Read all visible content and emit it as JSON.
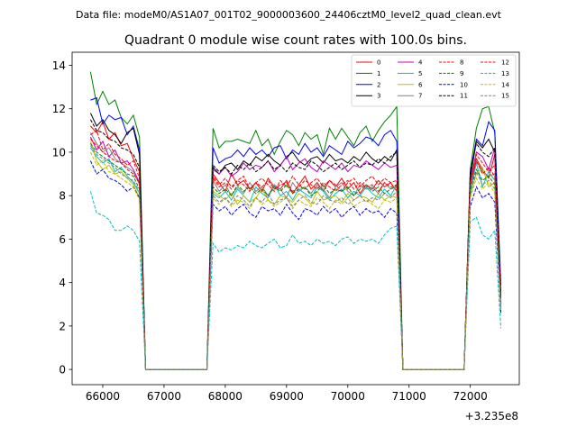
{
  "suptitle": "Data file: modeM0/AS1A07_001T02_9000003600_24406cztM0_level2_quad_clean.evt",
  "chart_data": {
    "type": "line",
    "title": "Quadrant 0 module wise count rates with 100.0s bins.",
    "xlabel": "",
    "ylabel": "",
    "x_offset_label": "+3.235e8",
    "xlim": [
      65500,
      72800
    ],
    "ylim": [
      -0.7,
      14.6
    ],
    "xticks": [
      66000,
      67000,
      68000,
      69000,
      70000,
      71000,
      72000
    ],
    "xtick_labels": [
      "66000",
      "67000",
      "68000",
      "69000",
      "70000",
      "71000",
      "72000"
    ],
    "yticks": [
      0,
      2,
      4,
      6,
      8,
      10,
      12,
      14
    ],
    "ytick_labels": [
      "0",
      "2",
      "4",
      "6",
      "8",
      "10",
      "12",
      "14"
    ],
    "grid": false,
    "legend_location": "upper right",
    "legend_columns": 4,
    "segments": [
      {
        "x_start": 65800,
        "x_end": 66600,
        "n": 9
      },
      {
        "x_start": 66700,
        "x_end": 67700,
        "n": 11
      },
      {
        "x_start": 67800,
        "x_end": 70800,
        "n": 31
      },
      {
        "x_start": 70900,
        "x_end": 71900,
        "n": 11
      },
      {
        "x_start": 72000,
        "x_end": 72500,
        "n": 6
      }
    ],
    "series": [
      {
        "name": "0",
        "color": "#ff0000",
        "linestyle": "solid",
        "values": [
          11.2,
          10.9,
          11.4,
          10.6,
          10.9,
          10.3,
          10.4,
          9.7,
          9.1,
          0,
          0,
          0,
          0,
          0,
          0,
          0,
          0,
          0,
          0,
          0,
          9.0,
          8.6,
          8.2,
          9.0,
          8.5,
          8.7,
          8.3,
          8.6,
          8.2,
          8.8,
          8.4,
          8.3,
          8.7,
          8.1,
          8.5,
          8.9,
          8.3,
          8.6,
          8.2,
          8.7,
          8.4,
          8.8,
          8.3,
          8.6,
          8.1,
          8.5,
          8.3,
          8.7,
          8.4,
          8.6,
          8.2,
          0,
          0,
          0,
          0,
          0,
          0,
          0,
          0,
          0,
          0,
          0,
          8.6,
          9.7,
          9.2,
          8.8,
          9.9,
          3.0
        ]
      },
      {
        "name": "1",
        "color": "#008000",
        "linestyle": "solid",
        "values": [
          13.7,
          12.2,
          12.8,
          12.2,
          12.4,
          11.6,
          11.3,
          11.7,
          10.7,
          0,
          0,
          0,
          0,
          0,
          0,
          0,
          0,
          0,
          0,
          0,
          11.1,
          10.2,
          10.5,
          10.5,
          10.6,
          10.5,
          10.4,
          11.0,
          10.3,
          10.6,
          9.9,
          10.5,
          11.0,
          10.8,
          10.3,
          10.9,
          10.6,
          10.8,
          9.9,
          11.1,
          10.6,
          11.1,
          10.7,
          10.3,
          10.9,
          11.2,
          10.5,
          11.0,
          11.4,
          11.7,
          12.1,
          0,
          0,
          0,
          0,
          0,
          0,
          0,
          0,
          0,
          0,
          0,
          9.2,
          11.1,
          12.0,
          12.1,
          10.9,
          3.9
        ]
      },
      {
        "name": "2",
        "color": "#0000ff",
        "linestyle": "solid",
        "values": [
          12.4,
          12.5,
          11.3,
          11.7,
          11.5,
          11.6,
          10.8,
          11.2,
          10.1,
          0,
          0,
          0,
          0,
          0,
          0,
          0,
          0,
          0,
          0,
          0,
          10.2,
          9.5,
          9.7,
          9.8,
          10.1,
          9.8,
          10.2,
          9.9,
          10.1,
          9.8,
          10.2,
          10.3,
          9.7,
          10.1,
          9.9,
          10.4,
          10.0,
          10.2,
          9.8,
          10.3,
          10.1,
          9.9,
          10.5,
          10.2,
          10.4,
          10.7,
          10.6,
          10.3,
          10.8,
          11.0,
          10.5,
          0,
          0,
          0,
          0,
          0,
          0,
          0,
          0,
          0,
          0,
          0,
          9.0,
          10.6,
          10.3,
          11.4,
          11.0,
          3.5
        ]
      },
      {
        "name": "3",
        "color": "#000000",
        "linestyle": "solid",
        "values": [
          11.8,
          11.2,
          11.5,
          11.0,
          10.8,
          10.4,
          10.9,
          11.1,
          9.9,
          0,
          0,
          0,
          0,
          0,
          0,
          0,
          0,
          0,
          0,
          0,
          9.3,
          9.0,
          9.4,
          9.5,
          9.2,
          9.6,
          9.4,
          9.8,
          9.6,
          9.9,
          9.6,
          9.4,
          9.8,
          10.0,
          9.6,
          9.4,
          9.7,
          9.8,
          9.5,
          9.9,
          9.6,
          9.7,
          9.5,
          9.8,
          9.6,
          10.0,
          9.7,
          9.5,
          9.8,
          9.6,
          10.1,
          0,
          0,
          0,
          0,
          0,
          0,
          0,
          0,
          0,
          0,
          0,
          8.8,
          10.5,
          10.2,
          10.6,
          10.0,
          2.8
        ]
      },
      {
        "name": "4",
        "color": "#bf00bf",
        "linestyle": "solid",
        "values": [
          10.7,
          10.1,
          10.5,
          9.8,
          10.1,
          9.5,
          9.6,
          9.2,
          8.6,
          0,
          0,
          0,
          0,
          0,
          0,
          0,
          0,
          0,
          0,
          0,
          9.2,
          9.0,
          9.3,
          8.9,
          9.1,
          9.5,
          9.2,
          9.4,
          9.3,
          9.6,
          9.1,
          9.4,
          9.8,
          9.2,
          9.5,
          9.7,
          9.3,
          9.1,
          9.6,
          9.4,
          9.2,
          9.5,
          9.1,
          9.4,
          9.3,
          9.6,
          9.4,
          9.2,
          9.5,
          9.3,
          9.4,
          0,
          0,
          0,
          0,
          0,
          0,
          0,
          0,
          0,
          0,
          0,
          8.6,
          10.0,
          9.8,
          9.2,
          10.2,
          3.0
        ]
      },
      {
        "name": "5",
        "color": "#00bfbf",
        "linestyle": "solid",
        "values": [
          10.2,
          9.8,
          9.5,
          9.7,
          9.1,
          9.3,
          8.9,
          8.6,
          8.1,
          0,
          0,
          0,
          0,
          0,
          0,
          0,
          0,
          0,
          0,
          0,
          8.1,
          7.9,
          8.2,
          7.8,
          8.3,
          8.0,
          7.7,
          8.4,
          8.1,
          7.9,
          8.5,
          8.0,
          8.2,
          7.8,
          8.3,
          8.1,
          7.9,
          8.4,
          8.2,
          7.8,
          8.1,
          8.3,
          7.9,
          8.2,
          8.0,
          8.4,
          8.1,
          7.9,
          8.3,
          8.0,
          8.5,
          0,
          0,
          0,
          0,
          0,
          0,
          0,
          0,
          0,
          0,
          0,
          8.2,
          9.5,
          8.4,
          9.1,
          8.7,
          2.9
        ]
      },
      {
        "name": "6",
        "color": "#bfbf00",
        "linestyle": "solid",
        "values": [
          10.5,
          9.6,
          9.2,
          9.4,
          9.0,
          9.1,
          8.8,
          8.5,
          7.9,
          0,
          0,
          0,
          0,
          0,
          0,
          0,
          0,
          0,
          0,
          0,
          8.2,
          8.0,
          7.8,
          8.1,
          7.6,
          8.0,
          7.7,
          7.9,
          8.3,
          7.8,
          7.6,
          8.0,
          7.9,
          7.7,
          8.1,
          7.9,
          7.6,
          8.2,
          7.8,
          7.9,
          8.0,
          7.7,
          8.1,
          7.8,
          8.0,
          7.9,
          7.7,
          8.1,
          7.8,
          8.0,
          7.9,
          0,
          0,
          0,
          0,
          0,
          0,
          0,
          0,
          0,
          0,
          0,
          8.1,
          9.0,
          9.3,
          8.4,
          8.6,
          3.0
        ]
      },
      {
        "name": "7",
        "color": "#808080",
        "linestyle": "solid",
        "values": [
          10.9,
          10.4,
          10.0,
          10.2,
          9.7,
          9.5,
          9.3,
          9.1,
          8.5,
          0,
          0,
          0,
          0,
          0,
          0,
          0,
          0,
          0,
          0,
          0,
          8.7,
          8.2,
          8.5,
          8.0,
          8.4,
          8.1,
          8.6,
          8.2,
          8.4,
          8.0,
          8.5,
          8.3,
          7.9,
          8.6,
          8.2,
          8.4,
          8.1,
          8.5,
          8.3,
          7.9,
          8.4,
          8.6,
          8.2,
          8.0,
          8.5,
          8.3,
          8.4,
          8.1,
          8.6,
          8.3,
          8.4,
          0,
          0,
          0,
          0,
          0,
          0,
          0,
          0,
          0,
          0,
          0,
          8.4,
          9.6,
          9.1,
          8.9,
          9.0,
          3.1
        ]
      },
      {
        "name": "8",
        "color": "#ff0000",
        "linestyle": "dashed",
        "values": [
          10.8,
          11.0,
          10.1,
          10.4,
          9.9,
          9.7,
          9.4,
          9.6,
          8.8,
          0,
          0,
          0,
          0,
          0,
          0,
          0,
          0,
          0,
          0,
          0,
          8.9,
          8.5,
          8.8,
          8.4,
          8.7,
          8.9,
          8.3,
          8.6,
          8.8,
          8.5,
          8.2,
          8.7,
          8.4,
          8.9,
          8.5,
          8.3,
          8.6,
          8.8,
          8.4,
          8.7,
          8.5,
          8.2,
          8.6,
          8.8,
          8.4,
          8.7,
          8.9,
          8.5,
          8.8,
          8.6,
          8.7,
          0,
          0,
          0,
          0,
          0,
          0,
          0,
          0,
          0,
          0,
          0,
          8.5,
          9.9,
          9.5,
          9.1,
          9.4,
          3.2
        ]
      },
      {
        "name": "9",
        "color": "#008000",
        "linestyle": "dashed",
        "values": [
          10.4,
          10.0,
          9.8,
          9.6,
          9.4,
          9.2,
          9.0,
          8.9,
          8.3,
          0,
          0,
          0,
          0,
          0,
          0,
          0,
          0,
          0,
          0,
          0,
          8.4,
          8.1,
          8.3,
          8.0,
          8.5,
          8.2,
          8.4,
          8.1,
          8.3,
          8.0,
          8.4,
          8.2,
          8.5,
          8.1,
          8.3,
          8.4,
          8.0,
          8.2,
          8.5,
          8.1,
          8.3,
          8.2,
          8.4,
          8.0,
          8.3,
          8.5,
          8.2,
          8.4,
          8.1,
          8.3,
          8.5,
          0,
          0,
          0,
          0,
          0,
          0,
          0,
          0,
          0,
          0,
          0,
          8.3,
          9.2,
          8.7,
          8.9,
          8.5,
          3.0
        ]
      },
      {
        "name": "10",
        "color": "#0000ff",
        "linestyle": "dashed",
        "values": [
          9.6,
          9.0,
          9.2,
          8.8,
          8.7,
          8.5,
          8.2,
          8.4,
          7.9,
          0,
          0,
          0,
          0,
          0,
          0,
          0,
          0,
          0,
          0,
          0,
          7.6,
          7.3,
          7.5,
          7.1,
          7.4,
          7.6,
          7.2,
          7.0,
          7.5,
          7.3,
          7.4,
          7.1,
          7.6,
          7.2,
          6.9,
          7.4,
          7.3,
          7.1,
          7.5,
          7.2,
          7.4,
          7.0,
          7.3,
          7.5,
          7.1,
          7.4,
          7.2,
          7.3,
          7.0,
          7.4,
          7.2,
          0,
          0,
          0,
          0,
          0,
          0,
          0,
          0,
          0,
          0,
          0,
          7.5,
          8.4,
          7.9,
          8.1,
          7.7,
          2.6
        ]
      },
      {
        "name": "11",
        "color": "#000000",
        "linestyle": "dashed",
        "values": [
          11.5,
          11.0,
          10.9,
          10.6,
          10.5,
          10.2,
          10.1,
          9.9,
          9.3,
          0,
          0,
          0,
          0,
          0,
          0,
          0,
          0,
          0,
          0,
          0,
          9.4,
          9.1,
          9.3,
          9.0,
          9.4,
          9.2,
          9.5,
          9.1,
          9.3,
          9.6,
          9.2,
          9.4,
          9.1,
          9.5,
          9.3,
          9.2,
          9.6,
          9.4,
          9.1,
          9.3,
          9.5,
          9.2,
          9.4,
          9.6,
          9.3,
          9.5,
          9.4,
          9.7,
          9.5,
          9.8,
          10.0,
          0,
          0,
          0,
          0,
          0,
          0,
          0,
          0,
          0,
          0,
          0,
          9.1,
          10.4,
          10.0,
          9.8,
          10.2,
          3.3
        ]
      },
      {
        "name": "12",
        "color": "#ff0000",
        "linestyle": "dashed",
        "values": [
          10.6,
          10.3,
          10.0,
          9.8,
          9.6,
          9.5,
          9.2,
          9.0,
          8.6,
          0,
          0,
          0,
          0,
          0,
          0,
          0,
          0,
          0,
          0,
          0,
          8.8,
          8.4,
          8.6,
          8.3,
          8.7,
          8.5,
          8.2,
          8.6,
          8.4,
          8.7,
          8.3,
          8.5,
          8.6,
          8.2,
          8.4,
          8.7,
          8.5,
          8.3,
          8.6,
          8.4,
          8.2,
          8.5,
          8.7,
          8.3,
          8.6,
          8.4,
          8.5,
          8.2,
          8.6,
          8.4,
          8.5,
          0,
          0,
          0,
          0,
          0,
          0,
          0,
          0,
          0,
          0,
          0,
          8.6,
          9.6,
          9.0,
          9.3,
          8.9,
          3.1
        ]
      },
      {
        "name": "13",
        "color": "#00bfbf",
        "linestyle": "dashed",
        "values": [
          8.2,
          7.2,
          7.1,
          6.9,
          6.4,
          6.4,
          6.6,
          6.4,
          5.9,
          0,
          0,
          0,
          0,
          0,
          0,
          0,
          0,
          0,
          0,
          0,
          5.8,
          5.4,
          5.6,
          5.5,
          5.7,
          5.6,
          5.9,
          5.7,
          5.6,
          5.8,
          6.0,
          5.6,
          5.7,
          6.2,
          5.8,
          5.9,
          5.7,
          6.0,
          5.8,
          5.9,
          5.7,
          6.0,
          6.1,
          5.8,
          6.0,
          5.9,
          6.0,
          5.8,
          6.2,
          6.5,
          6.6,
          0,
          0,
          0,
          0,
          0,
          0,
          0,
          0,
          0,
          0,
          0,
          6.8,
          7.0,
          6.2,
          6.0,
          6.4,
          1.9
        ]
      },
      {
        "name": "14",
        "color": "#bfbf00",
        "linestyle": "dashed",
        "values": [
          10.0,
          9.4,
          9.6,
          9.1,
          9.0,
          8.8,
          8.6,
          8.4,
          7.8,
          0,
          0,
          0,
          0,
          0,
          0,
          0,
          0,
          0,
          0,
          0,
          7.9,
          7.6,
          7.9,
          7.5,
          7.8,
          7.7,
          7.4,
          7.9,
          7.6,
          7.8,
          7.5,
          7.7,
          7.9,
          7.4,
          7.8,
          7.6,
          7.5,
          7.9,
          7.7,
          7.4,
          7.8,
          7.6,
          7.9,
          7.5,
          7.7,
          7.8,
          7.6,
          7.4,
          7.8,
          7.7,
          7.9,
          0,
          0,
          0,
          0,
          0,
          0,
          0,
          0,
          0,
          0,
          0,
          7.9,
          8.8,
          8.3,
          8.6,
          8.1,
          2.7
        ]
      },
      {
        "name": "15",
        "color": "#808080",
        "linestyle": "dashed",
        "values": [
          10.3,
          9.9,
          9.7,
          9.5,
          9.3,
          9.0,
          8.8,
          8.7,
          8.2,
          0,
          0,
          0,
          0,
          0,
          0,
          0,
          0,
          0,
          0,
          0,
          8.0,
          7.7,
          7.9,
          7.6,
          8.0,
          7.8,
          7.5,
          7.9,
          7.7,
          8.1,
          7.6,
          7.8,
          7.9,
          7.5,
          7.8,
          8.0,
          7.7,
          7.6,
          8.0,
          7.8,
          7.7,
          7.9,
          7.6,
          7.8,
          8.0,
          7.7,
          7.9,
          7.8,
          8.1,
          7.9,
          8.2,
          0,
          0,
          0,
          0,
          0,
          0,
          0,
          0,
          0,
          0,
          0,
          8.0,
          9.1,
          8.5,
          8.7,
          8.3,
          2.8
        ]
      }
    ]
  }
}
